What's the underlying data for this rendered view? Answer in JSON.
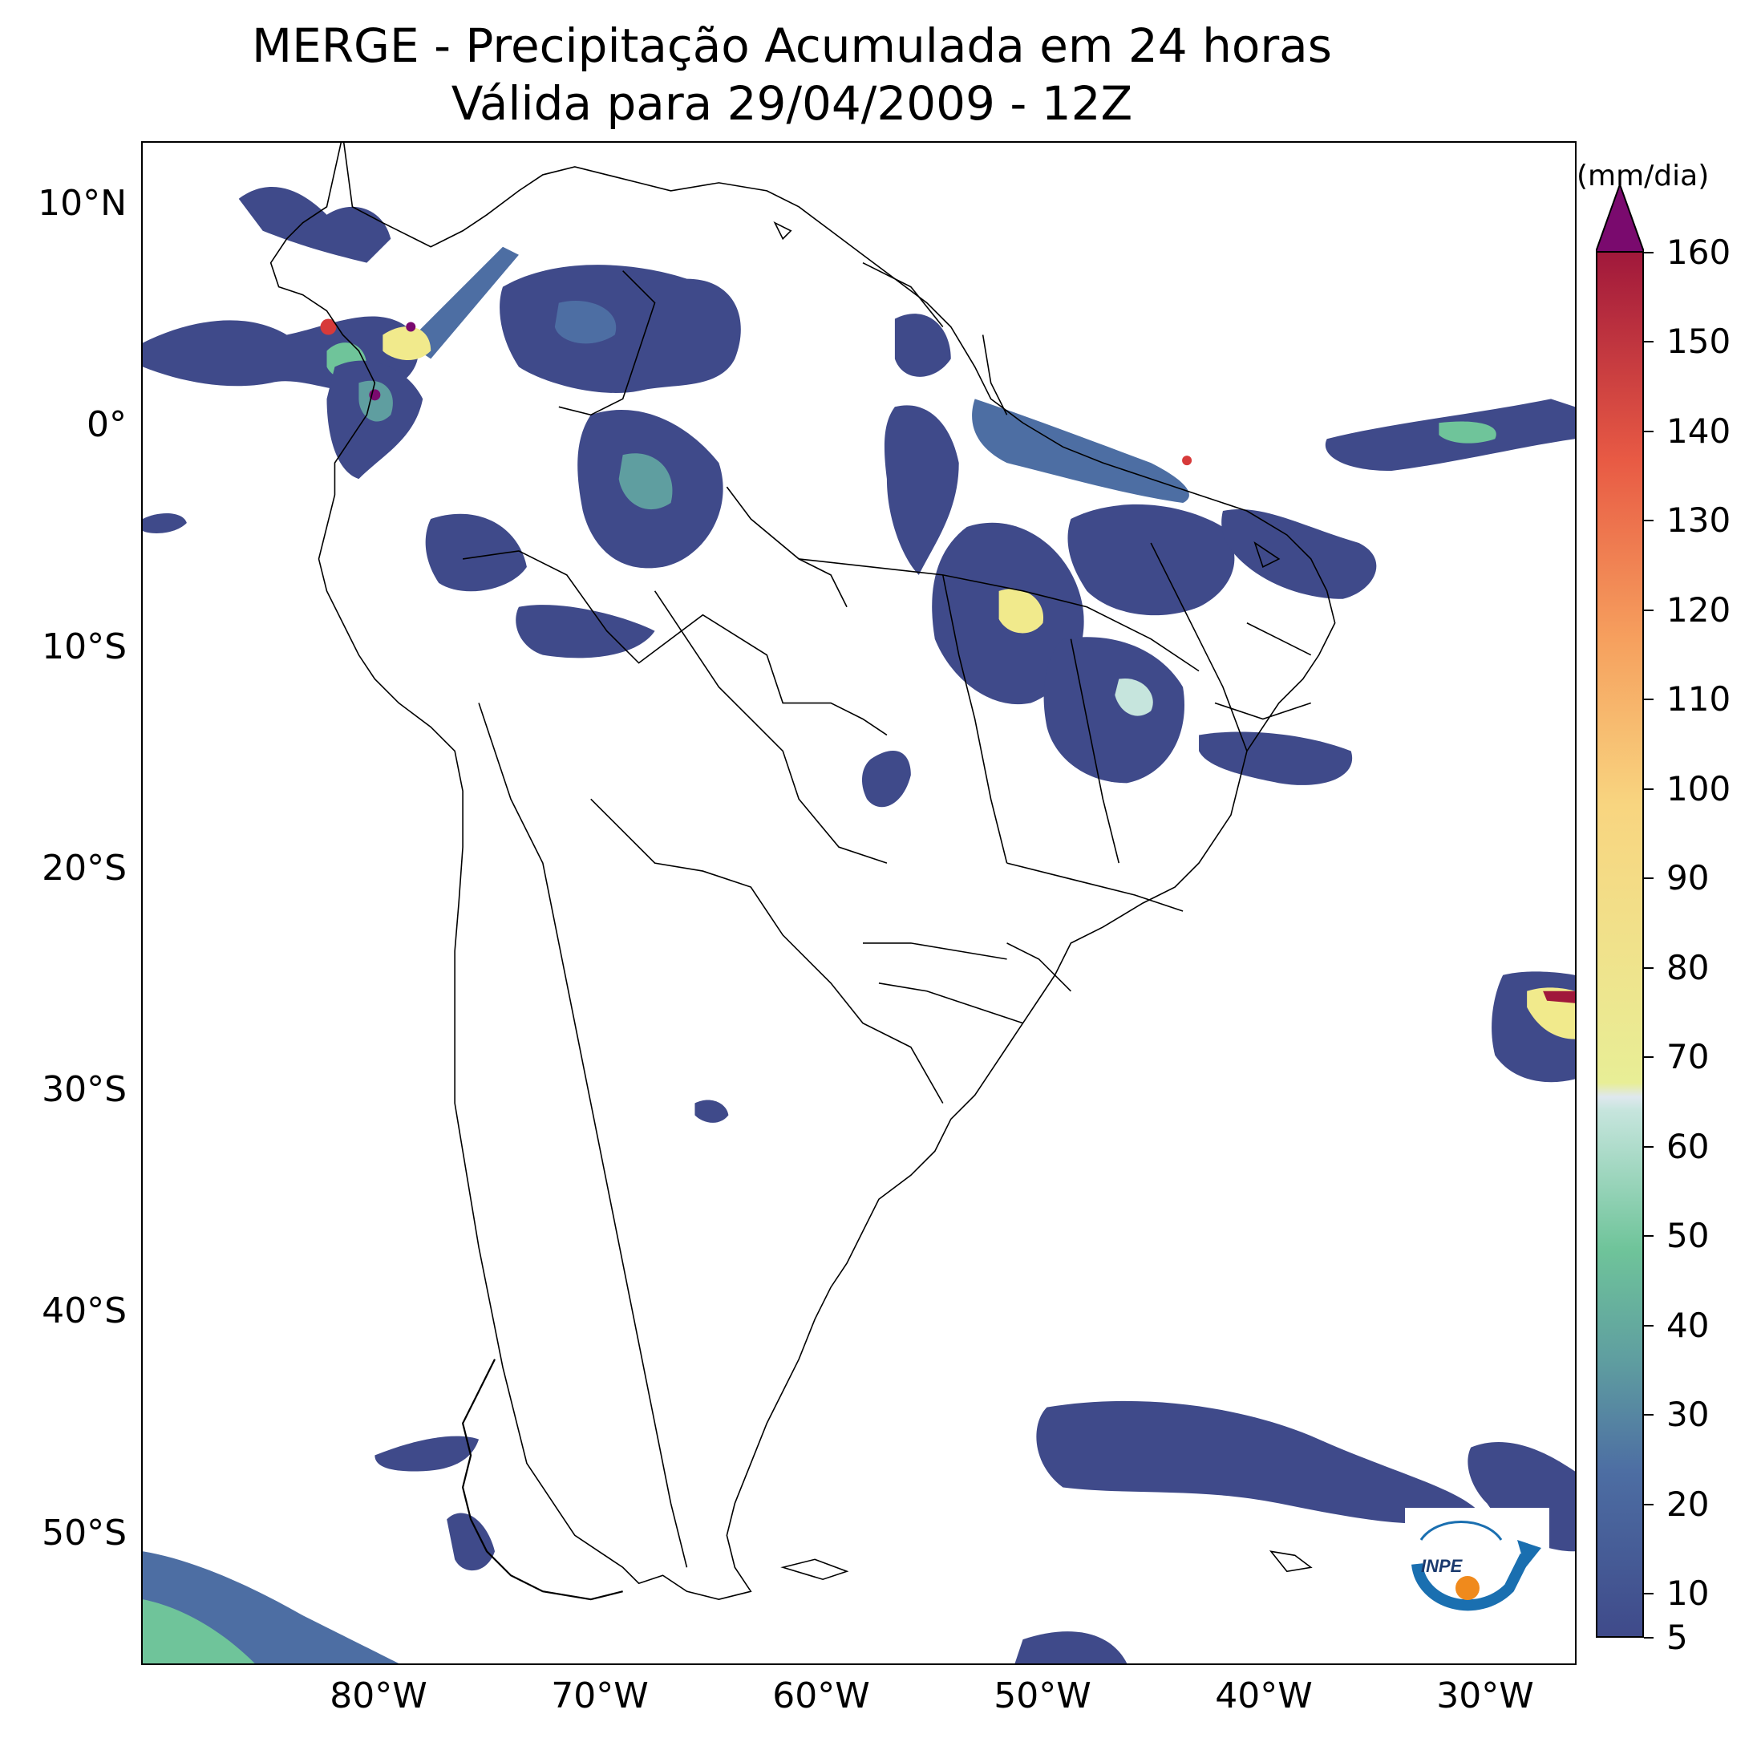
{
  "title": {
    "line1": "MERGE - Precipitação Acumulada em 24 horas",
    "line2": "Válida para 29/04/2009 - 12Z"
  },
  "axes": {
    "lat_labels": [
      "10°N",
      "0°",
      "10°S",
      "20°S",
      "30°S",
      "40°S",
      "50°S"
    ],
    "lon_labels": [
      "80°W",
      "70°W",
      "60°W",
      "50°W",
      "40°W",
      "30°W"
    ]
  },
  "colorbar": {
    "unit": "(mm/dia)",
    "ticks": [
      "5",
      "10",
      "20",
      "30",
      "40",
      "50",
      "60",
      "70",
      "80",
      "90",
      "100",
      "110",
      "120",
      "130",
      "140",
      "150",
      "160"
    ],
    "colors": {
      "low": "#3f4a8a",
      "blue": "#4d6ea3",
      "teal": "#5f9ea0",
      "green": "#6fc49a",
      "pale": "#c6e5dd",
      "yellow": "#f1ea8c",
      "orange": "#f6a05e",
      "red": "#d73a3a",
      "darkred": "#a0183b",
      "purple": "#7a0a6e"
    }
  },
  "logo": {
    "text": "INPE"
  },
  "icons": [
    "inpe-logo-icon"
  ]
}
